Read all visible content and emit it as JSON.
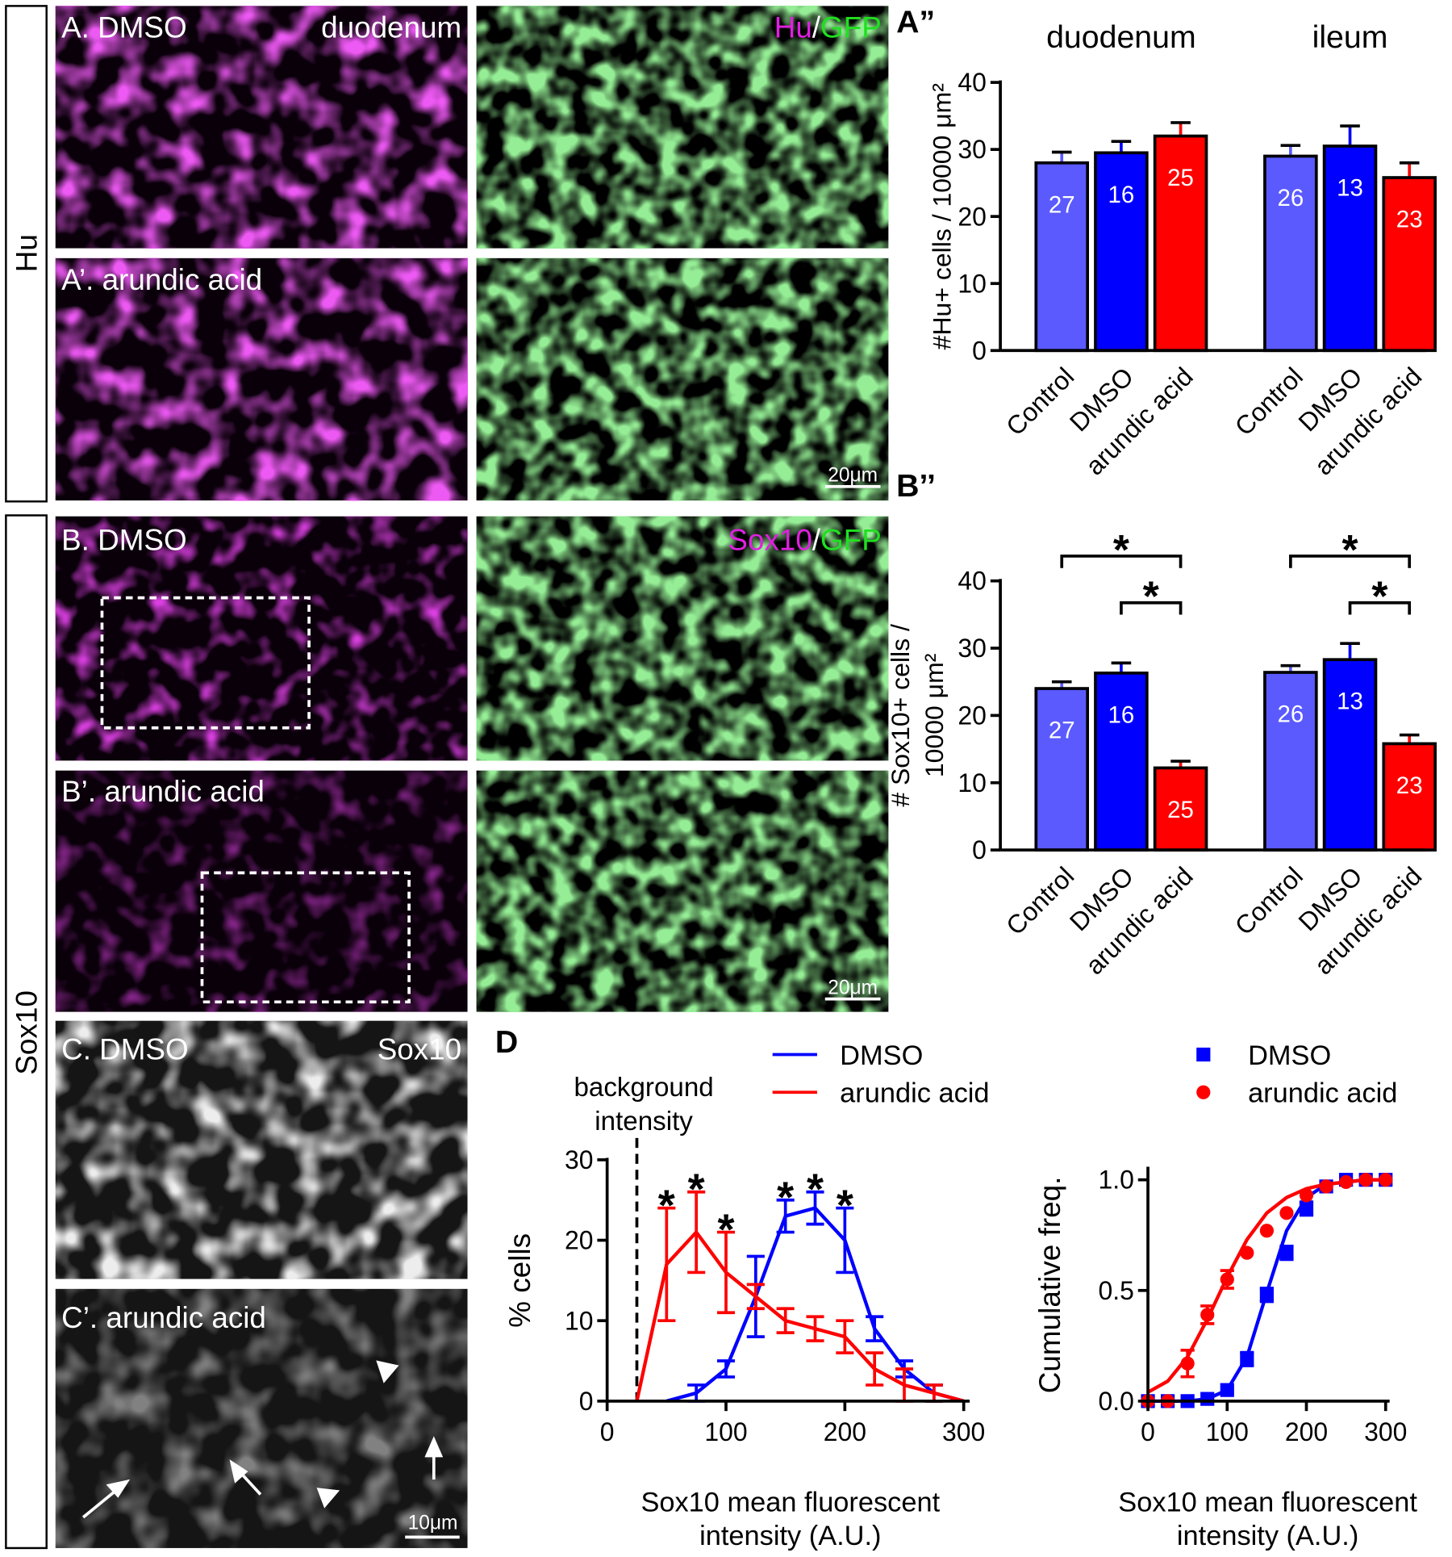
{
  "side_labels": {
    "hu": "Hu",
    "sox10": "Sox10"
  },
  "panels": [
    {
      "label": "A. DMSO",
      "right": "duodenum"
    },
    {
      "stain": [
        "Hu",
        "/",
        "GFP"
      ]
    },
    {
      "label": "A’. arundic acid"
    },
    {
      "scale": "20μm"
    },
    {
      "label": "B. DMSO"
    },
    {
      "stain": [
        "Sox10",
        "/",
        "GFP"
      ]
    },
    {
      "label": "B’. arundic acid"
    },
    {
      "scale": "20μm"
    },
    {
      "label": "C. DMSO",
      "right": "Sox10"
    },
    {
      "label": "C’. arundic acid",
      "scale": "10μm"
    }
  ],
  "chart_data": [
    {
      "type": "bar",
      "panel_label": "A”",
      "group_labels": [
        "duodenum",
        "ileum"
      ],
      "categories": [
        "Control",
        "DMSO",
        "arundic acid",
        "Control",
        "DMSO",
        "arundic acid"
      ],
      "values": [
        28,
        29.5,
        32,
        29,
        30.5,
        25.8
      ],
      "errors": [
        1.6,
        1.7,
        2,
        1.6,
        3,
        2.2
      ],
      "n": [
        27,
        16,
        25,
        26,
        13,
        23
      ],
      "colors": [
        "#5a5aff",
        "#0000ff",
        "#ff0000",
        "#5a5aff",
        "#0000ff",
        "#ff0000"
      ],
      "y_label": [
        "#Hu+ cells / 10000 μm²"
      ],
      "ylim": [
        0,
        40
      ],
      "yticks": [
        0,
        10,
        20,
        30,
        40
      ]
    },
    {
      "type": "bar",
      "panel_label": "B’’",
      "group_labels": null,
      "categories": [
        "Control",
        "DMSO",
        "arundic acid",
        "Control",
        "DMSO",
        "arundic acid"
      ],
      "values": [
        24,
        26.3,
        12.2,
        26.4,
        28.3,
        15.8
      ],
      "errors": [
        1,
        1.5,
        1,
        1,
        2.4,
        1.3
      ],
      "n": [
        27,
        16,
        25,
        26,
        13,
        23
      ],
      "colors": [
        "#5a5aff",
        "#0000ff",
        "#ff0000",
        "#5a5aff",
        "#0000ff",
        "#ff0000"
      ],
      "y_label": [
        "# Sox10+ cells /",
        "10000 μm²"
      ],
      "comparisons": [
        [
          0,
          2
        ],
        [
          1,
          2
        ],
        [
          3,
          5
        ],
        [
          4,
          5
        ]
      ],
      "significance_label": "*",
      "ylim": [
        0,
        40
      ],
      "yticks": [
        0,
        10,
        20,
        30,
        40
      ]
    },
    {
      "type": "line",
      "panel_label": "D",
      "x": [
        25,
        50,
        75,
        100,
        125,
        150,
        175,
        200,
        225,
        250,
        275,
        300
      ],
      "series": [
        {
          "name": "DMSO",
          "color": "#0000ff",
          "values": [
            null,
            0,
            1,
            4,
            13,
            23,
            24,
            20,
            9,
            4,
            1,
            0
          ],
          "errors": [
            null,
            null,
            1,
            1,
            5,
            2,
            2,
            4,
            1.5,
            1,
            1,
            null
          ]
        },
        {
          "name": "arundic acid",
          "color": "#ff0000",
          "values": [
            0,
            17,
            21,
            16,
            13,
            10,
            9,
            8,
            4,
            2,
            1,
            0
          ],
          "errors": [
            null,
            7,
            5,
            5,
            1.5,
            1.5,
            1.5,
            2,
            2,
            2,
            1,
            null
          ]
        }
      ],
      "significant_x": [
        50,
        75,
        100,
        150,
        175,
        200
      ],
      "significance_label": "*",
      "background_x": 25,
      "background_label": [
        "background",
        "intensity"
      ],
      "x_label": [
        "Sox10 mean fluorescent",
        "intensity (A.U.)"
      ],
      "y_label": "% cells",
      "xlim": [
        0,
        305
      ],
      "xticks": [
        0,
        100,
        200,
        300
      ],
      "ylim": [
        0,
        30
      ],
      "yticks": [
        0,
        10,
        20,
        30
      ]
    },
    {
      "type": "scatter",
      "x": [
        0,
        25,
        50,
        75,
        100,
        125,
        150,
        175,
        200,
        225,
        250,
        275,
        300
      ],
      "series": [
        {
          "name": "DMSO",
          "color": "#0000ff",
          "marker": "square",
          "values": [
            0,
            0,
            0,
            0.01,
            0.05,
            0.19,
            0.48,
            0.67,
            0.87,
            0.97,
            1,
            1,
            1
          ],
          "errors": [
            null,
            null,
            null,
            null,
            null,
            0.03,
            0.03,
            0.03,
            0.03,
            null,
            null,
            null,
            null
          ],
          "fit": [
            0,
            0,
            0,
            0.01,
            0.05,
            0.2,
            0.49,
            0.77,
            0.92,
            0.98,
            0.99,
            1,
            1
          ]
        },
        {
          "name": "arundic acid",
          "color": "#ff0000",
          "marker": "circle",
          "values": [
            0,
            0,
            0.17,
            0.39,
            0.55,
            0.67,
            0.77,
            0.85,
            0.93,
            0.97,
            0.99,
            1,
            1
          ],
          "errors": [
            null,
            null,
            0.06,
            0.04,
            0.04,
            null,
            null,
            null,
            null,
            null,
            null,
            null,
            null
          ],
          "fit": [
            0.04,
            0.09,
            0.2,
            0.37,
            0.56,
            0.73,
            0.85,
            0.92,
            0.96,
            0.98,
            0.99,
            1,
            1
          ]
        }
      ],
      "x_label": [
        "Sox10 mean fluorescent",
        "intensity (A.U.)"
      ],
      "y_label": "Cumulative freq.",
      "xlim": [
        0,
        305
      ],
      "xticks": [
        0,
        100,
        200,
        300
      ],
      "ylim": [
        0,
        1.05
      ],
      "yticks": [
        {
          "value": 0,
          "label": "0.0"
        },
        {
          "value": 0.5,
          "label": "0.5"
        },
        {
          "value": 1,
          "label": "1.0"
        }
      ]
    }
  ]
}
